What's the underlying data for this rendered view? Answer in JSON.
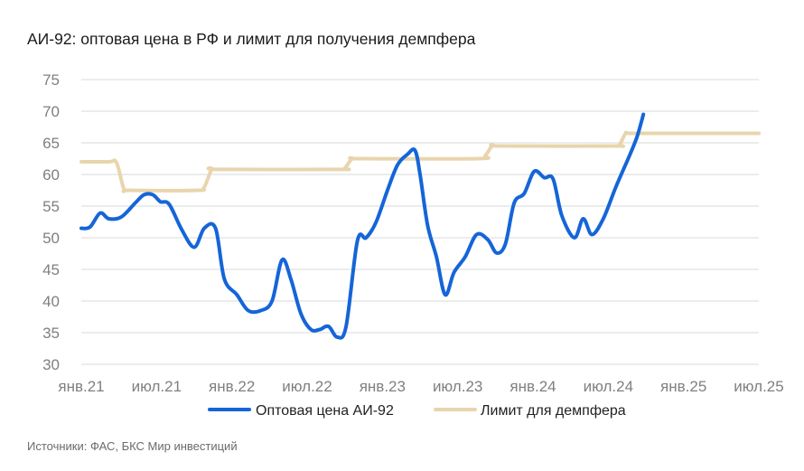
{
  "title": "АИ-92: оптовая цена в РФ и лимит для получения демпфера",
  "source": "Источники: ФАС, БКС Мир инвестиций",
  "chart_data": {
    "type": "line",
    "title": "АИ-92: оптовая цена в РФ и лимит для получения демпфера",
    "xlabel": "",
    "ylabel": "",
    "ylim": [
      30,
      75
    ],
    "yticks": [
      "75",
      "70",
      "65",
      "60",
      "55",
      "50",
      "45",
      "40",
      "35",
      "30"
    ],
    "xlim": [
      0,
      54
    ],
    "xticks": [
      {
        "label": "янв.21",
        "month": 0
      },
      {
        "label": "июл.21",
        "month": 6
      },
      {
        "label": "янв.22",
        "month": 12
      },
      {
        "label": "июл.22",
        "month": 18
      },
      {
        "label": "янв.23",
        "month": 24
      },
      {
        "label": "июл.23",
        "month": 30
      },
      {
        "label": "янв.24",
        "month": 36
      },
      {
        "label": "июл.24",
        "month": 42
      },
      {
        "label": "янв.25",
        "month": 48
      },
      {
        "label": "июл.25",
        "month": 54
      }
    ],
    "grid": true,
    "legend_position": "bottom",
    "series": [
      {
        "name": "Оптовая цена АИ-92",
        "color": "#1565d8",
        "points": [
          [
            0,
            51.5
          ],
          [
            0.7,
            51.7
          ],
          [
            1.5,
            53.9
          ],
          [
            2.2,
            53.0
          ],
          [
            3.2,
            53.3
          ],
          [
            4.3,
            55.5
          ],
          [
            5.0,
            56.8
          ],
          [
            5.7,
            56.8
          ],
          [
            6.3,
            55.7
          ],
          [
            7.0,
            55.3
          ],
          [
            8.0,
            51.3
          ],
          [
            9.0,
            48.5
          ],
          [
            9.8,
            51.5
          ],
          [
            10.7,
            51.5
          ],
          [
            11.4,
            43.5
          ],
          [
            12.4,
            41.0
          ],
          [
            13.3,
            38.5
          ],
          [
            14.3,
            38.5
          ],
          [
            15.2,
            40.0
          ],
          [
            16.0,
            46.5
          ],
          [
            16.7,
            43.5
          ],
          [
            17.5,
            38.0
          ],
          [
            18.3,
            35.5
          ],
          [
            19.0,
            35.5
          ],
          [
            19.7,
            36.0
          ],
          [
            20.4,
            34.3
          ],
          [
            21.1,
            36.0
          ],
          [
            22.0,
            49.5
          ],
          [
            22.7,
            50.0
          ],
          [
            23.5,
            52.5
          ],
          [
            24.4,
            57.5
          ],
          [
            25.2,
            61.5
          ],
          [
            26.0,
            63.2
          ],
          [
            26.6,
            63.8
          ],
          [
            27.0,
            60.0
          ],
          [
            27.6,
            52.0
          ],
          [
            28.3,
            47.0
          ],
          [
            29.0,
            41.0
          ],
          [
            29.7,
            44.5
          ],
          [
            30.6,
            47.0
          ],
          [
            31.5,
            50.5
          ],
          [
            32.4,
            49.7
          ],
          [
            33.1,
            47.6
          ],
          [
            33.8,
            49.0
          ],
          [
            34.5,
            55.5
          ],
          [
            35.3,
            57.0
          ],
          [
            36.1,
            60.5
          ],
          [
            36.9,
            59.5
          ],
          [
            37.6,
            59.3
          ],
          [
            38.3,
            53.5
          ],
          [
            39.3,
            50.0
          ],
          [
            40.0,
            53.0
          ],
          [
            40.7,
            50.5
          ],
          [
            41.6,
            53.0
          ],
          [
            42.6,
            58.0
          ],
          [
            43.7,
            63.0
          ],
          [
            44.3,
            66.0
          ],
          [
            44.8,
            69.5
          ]
        ]
      },
      {
        "name": "Лимит для демпфера",
        "color": "#e8d5ad",
        "points": [
          [
            0,
            62.0
          ],
          [
            2.2,
            62.0
          ],
          [
            2.8,
            61.9
          ],
          [
            3.4,
            57.7
          ],
          [
            3.9,
            57.5
          ],
          [
            9.2,
            57.5
          ],
          [
            9.8,
            58.0
          ],
          [
            10.4,
            60.8
          ],
          [
            11.0,
            60.8
          ],
          [
            20.5,
            60.8
          ],
          [
            21.0,
            61.0
          ],
          [
            21.6,
            62.5
          ],
          [
            22.3,
            62.5
          ],
          [
            31.6,
            62.5
          ],
          [
            32.2,
            63.0
          ],
          [
            32.8,
            64.6
          ],
          [
            33.5,
            64.5
          ],
          [
            42.4,
            64.5
          ],
          [
            42.9,
            64.7
          ],
          [
            43.4,
            66.5
          ],
          [
            44.0,
            66.5
          ],
          [
            49.5,
            66.5
          ],
          [
            50.1,
            66.5
          ],
          [
            50.7,
            66.5
          ],
          [
            51.3,
            66.5
          ],
          [
            54.0,
            66.5
          ]
        ]
      }
    ]
  }
}
